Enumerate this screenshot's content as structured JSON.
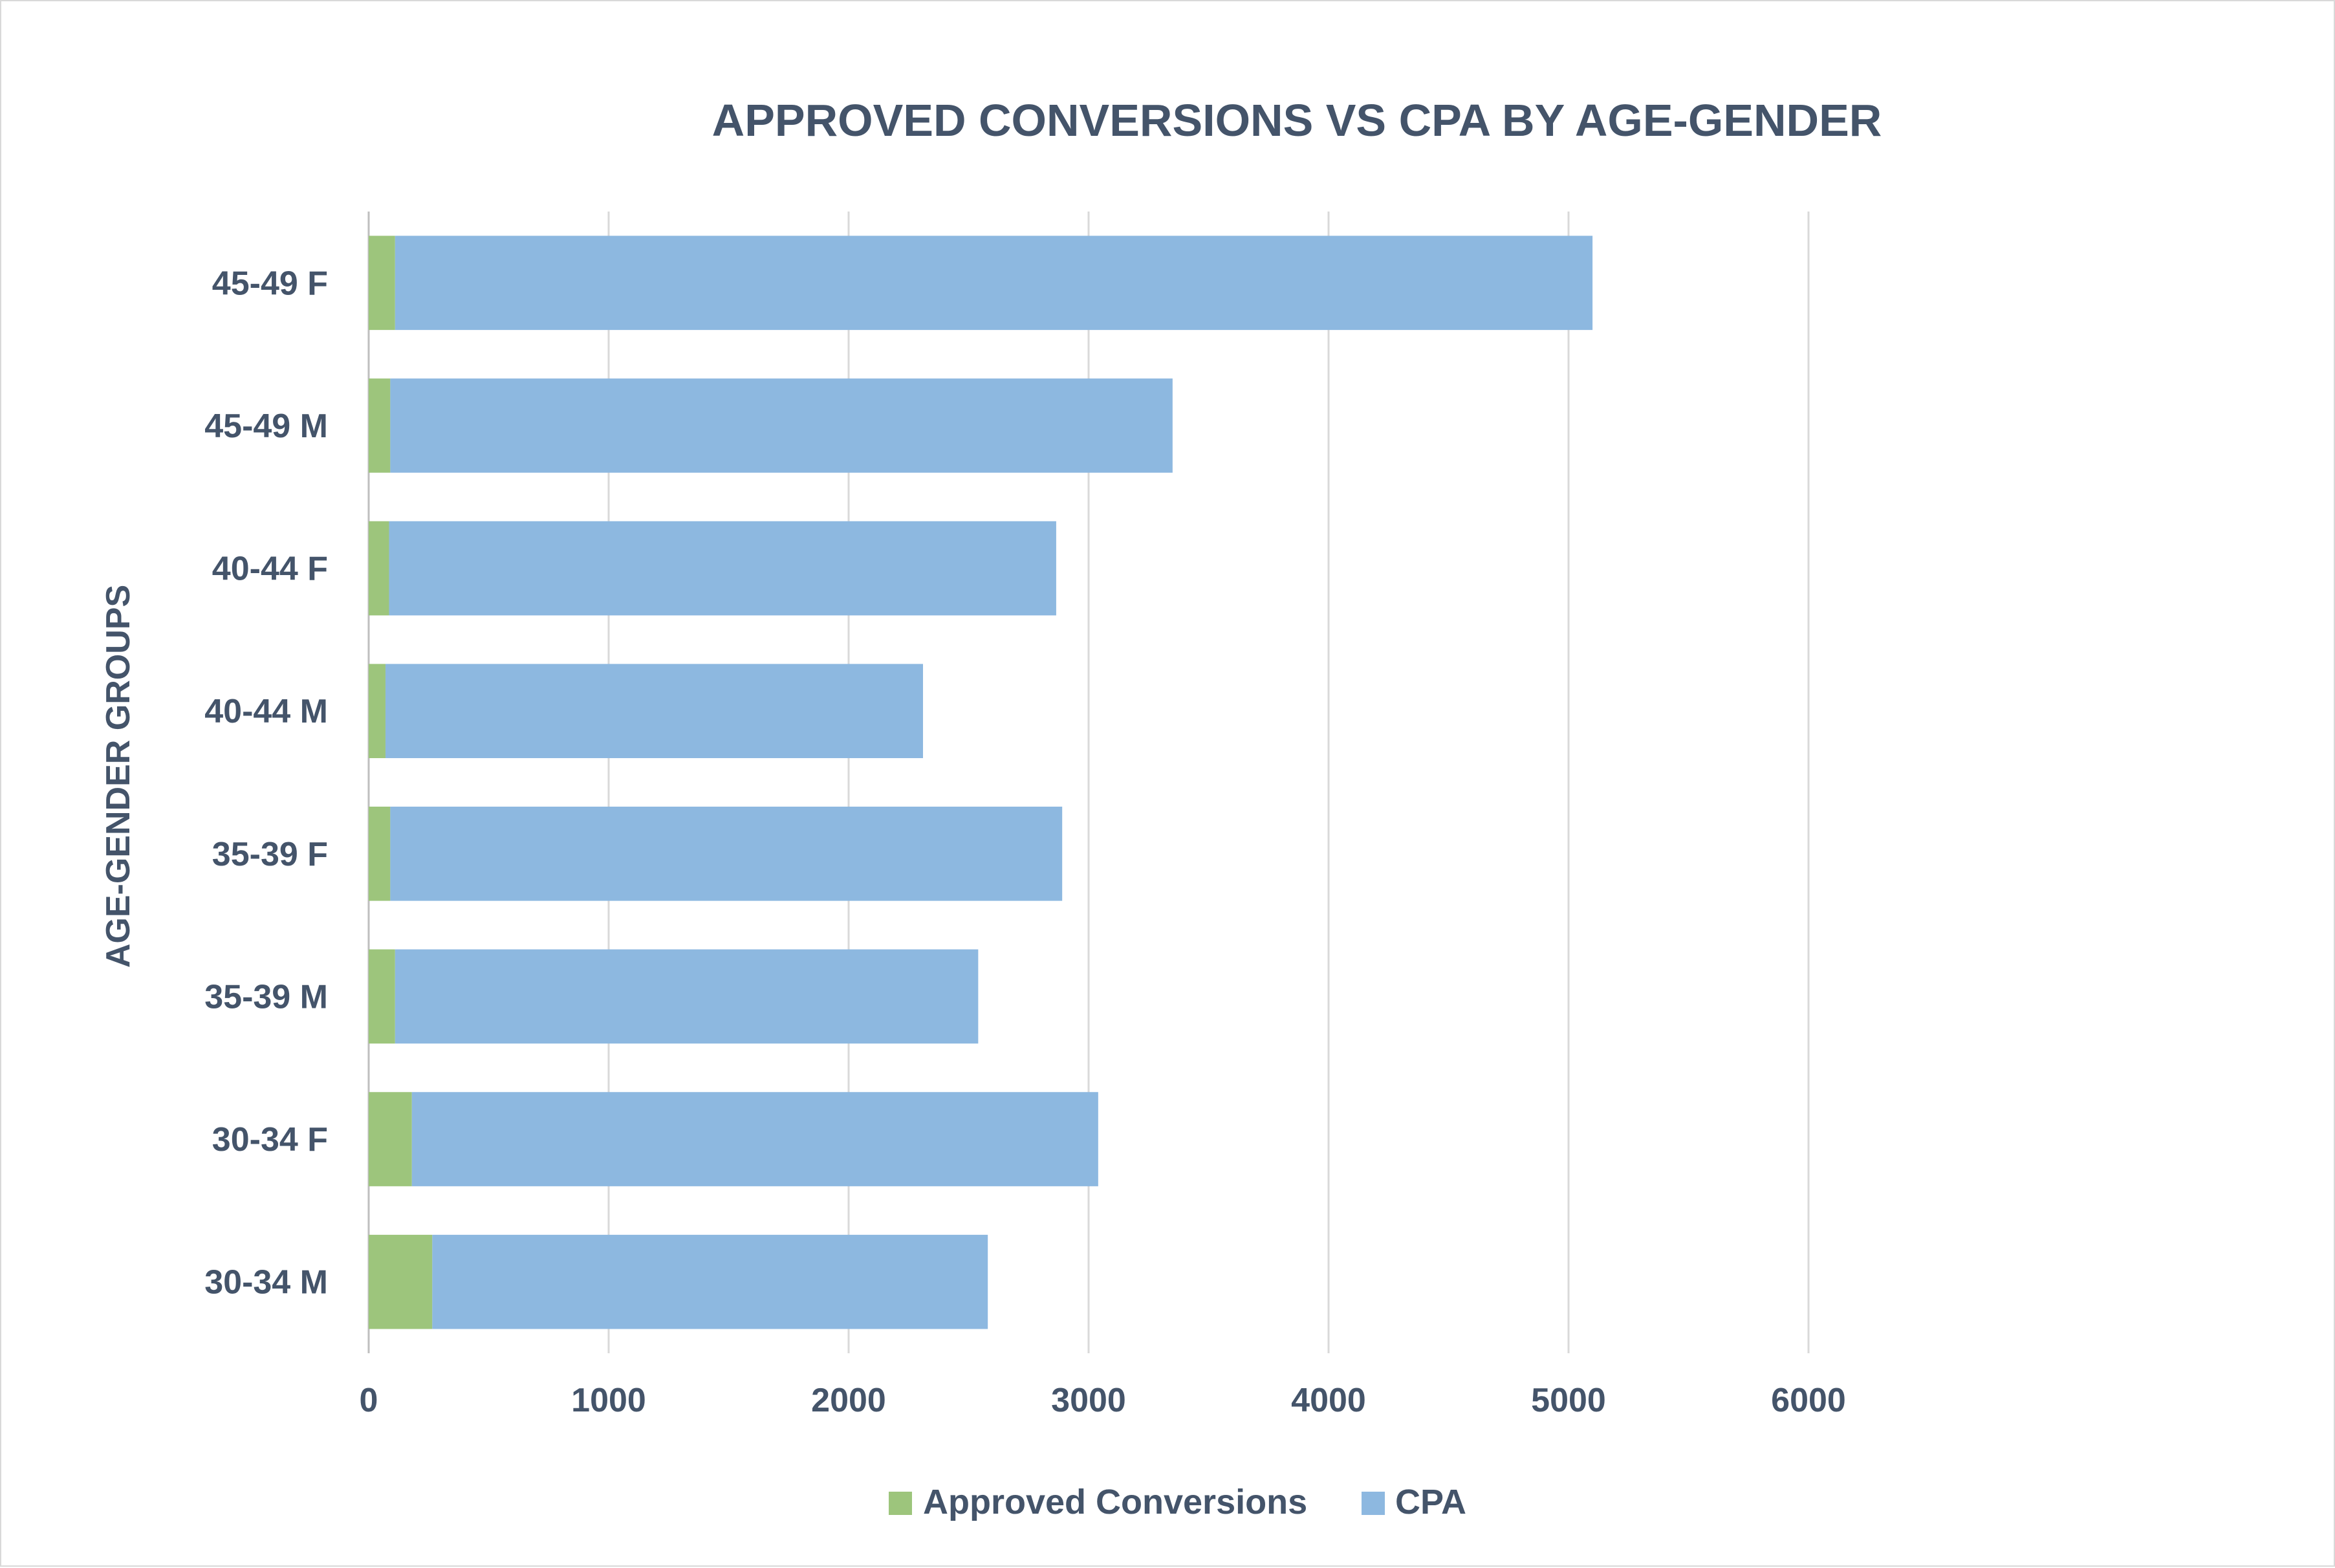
{
  "chart_data": {
    "type": "bar",
    "orientation": "horizontal",
    "stacked": true,
    "title": "APPROVED CONVERSIONS VS CPA BY AGE-GENDER",
    "ylabel": "AGE-GENDER GROUPS",
    "xlabel": "",
    "categories": [
      "45-49 F",
      "45-49 M",
      "40-44 F",
      "40-44 M",
      "35-39 F",
      "35-39 M",
      "30-34 F",
      "30-34 M"
    ],
    "series": [
      {
        "name": "Approved Conversions",
        "color": "#9dc57c",
        "values": [
          110,
          90,
          85,
          70,
          90,
          110,
          180,
          265
        ]
      },
      {
        "name": "CPA",
        "color": "#8db8e0",
        "values": [
          4990,
          3260,
          2780,
          2240,
          2800,
          2430,
          2860,
          2315
        ]
      }
    ],
    "xlim": [
      0,
      7000
    ],
    "xticks": [
      "0",
      "1000",
      "2000",
      "3000",
      "4000",
      "5000",
      "6000"
    ],
    "grid": true,
    "legend_position": "bottom"
  }
}
